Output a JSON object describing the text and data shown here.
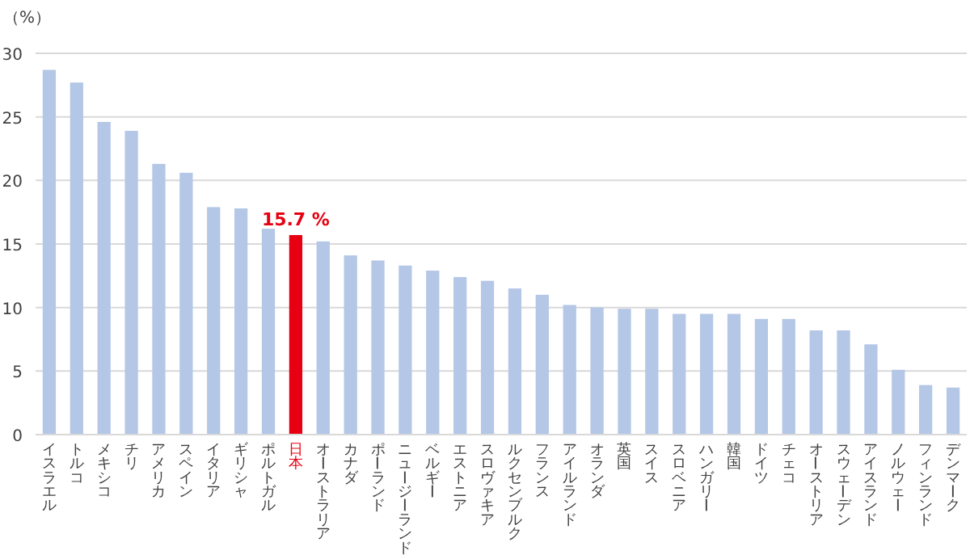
{
  "chart_data": {
    "type": "bar",
    "ylabel": "（%）",
    "categories": [
      "イスラエル",
      "トルコ",
      "メキシコ",
      "チリ",
      "アメリカ",
      "スペイン",
      "イタリア",
      "ギリシャ",
      "ポルトガル",
      "日本",
      "オーストラリア",
      "カナダ",
      "ポーランド",
      "ニュージーランド",
      "ベルギー",
      "エストニア",
      "スロヴァキア",
      "ルクセンブルク",
      "フランス",
      "アイルランド",
      "オランダ",
      "英国",
      "スイス",
      "スロベニア",
      "ハンガリー",
      "韓国",
      "ドイツ",
      "チェコ",
      "オーストリア",
      "スウェーデン",
      "アイスランド",
      "ノルウェー",
      "フィンランド",
      "デンマーク"
    ],
    "values": [
      28.7,
      27.7,
      24.6,
      23.9,
      21.3,
      20.6,
      17.9,
      17.8,
      16.2,
      15.7,
      15.2,
      14.1,
      13.7,
      13.3,
      12.9,
      12.4,
      12.1,
      11.5,
      11.0,
      10.2,
      10.0,
      9.9,
      9.9,
      9.5,
      9.5,
      9.5,
      9.1,
      9.1,
      8.2,
      8.2,
      7.1,
      5.1,
      3.9,
      3.7
    ],
    "colors": [
      "#b4c7e7",
      "#b4c7e7",
      "#b4c7e7",
      "#b4c7e7",
      "#b4c7e7",
      "#b4c7e7",
      "#b4c7e7",
      "#b4c7e7",
      "#b4c7e7",
      "#e60012",
      "#b4c7e7",
      "#b4c7e7",
      "#b4c7e7",
      "#b4c7e7",
      "#b4c7e7",
      "#b4c7e7",
      "#b4c7e7",
      "#b4c7e7",
      "#b4c7e7",
      "#b4c7e7",
      "#b4c7e7",
      "#b4c7e7",
      "#b4c7e7",
      "#b4c7e7",
      "#b4c7e7",
      "#b4c7e7",
      "#b4c7e7",
      "#b4c7e7",
      "#b4c7e7",
      "#b4c7e7",
      "#b4c7e7",
      "#b4c7e7",
      "#b4c7e7",
      "#b4c7e7"
    ],
    "value_labels": [
      null,
      null,
      null,
      null,
      null,
      null,
      null,
      null,
      null,
      "15.7 %",
      null,
      null,
      null,
      null,
      null,
      null,
      null,
      null,
      null,
      null,
      null,
      null,
      null,
      null,
      null,
      null,
      null,
      null,
      null,
      null,
      null,
      null,
      null,
      null
    ],
    "ylim": [
      0,
      30
    ],
    "yticks": [
      0,
      5,
      10,
      15,
      20,
      25,
      30
    ],
    "grid": "y"
  }
}
